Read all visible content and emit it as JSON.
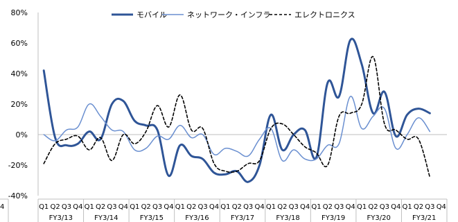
{
  "chart_data": {
    "type": "line",
    "ylim": [
      -40,
      80
    ],
    "yticks": [
      "80%",
      "60%",
      "40%",
      "20%",
      "0%",
      "-20%",
      "-40%"
    ],
    "ytick_values": [
      80,
      60,
      40,
      20,
      0,
      -20,
      -40
    ],
    "quarter_labels": [
      "Q1",
      "Q2",
      "Q3",
      "Q4",
      "Q1",
      "Q2",
      "Q3",
      "Q4",
      "Q1",
      "Q2",
      "Q3",
      "Q4",
      "Q1",
      "Q2",
      "Q3",
      "Q4",
      "Q1",
      "Q2",
      "Q3",
      "Q4",
      "Q1",
      "Q2",
      "Q3",
      "Q4",
      "Q1",
      "Q2",
      "Q3",
      "Q4",
      "Q1",
      "Q2",
      "Q3",
      "Q4",
      "Q1",
      "Q2",
      "Q3",
      "Q4"
    ],
    "fiscal_years": [
      "FY3/13",
      "FY3/14",
      "FY3/15",
      "FY3/16",
      "FY3/17",
      "FY3/18",
      "FY3/19",
      "FY3/20",
      "FY3/21"
    ],
    "edge_label": "4",
    "legend_placement": "top",
    "grid": false,
    "series": [
      {
        "name": "モバイル",
        "color": "#2f5597",
        "style": "solid-thick",
        "values": [
          42,
          -2,
          -7,
          -6,
          2,
          -3,
          20,
          22,
          9,
          6,
          3,
          -27,
          -7,
          -14,
          -16,
          -25,
          -26,
          -24,
          -31,
          -20,
          13,
          -10,
          0,
          3,
          -15,
          34,
          25,
          62,
          46,
          14,
          28,
          -1,
          13,
          17,
          14
        ]
      },
      {
        "name": "ネットワーク・インフラ",
        "color": "#6a8fd0",
        "style": "solid-thin",
        "values": [
          0,
          -4,
          3,
          5,
          20,
          12,
          3,
          2,
          -10,
          -9,
          -1,
          -3,
          6,
          -2,
          0,
          -13,
          -9,
          -11,
          -14,
          -3,
          4,
          -17,
          -10,
          -16,
          -16,
          -7,
          -6,
          25,
          4,
          12,
          17,
          -9,
          0,
          11,
          2
        ]
      },
      {
        "name": "エレクトロニクス",
        "color": "#000000",
        "style": "dashed",
        "values": [
          -19,
          -6,
          -3,
          -1,
          -10,
          -2,
          -17,
          0,
          -6,
          2,
          19,
          5,
          26,
          3,
          4,
          -19,
          -24,
          -24,
          -19,
          -17,
          4,
          7,
          0,
          -8,
          -12,
          -20,
          12,
          14,
          20,
          51,
          7,
          3,
          -3,
          -3,
          -28
        ]
      }
    ]
  }
}
